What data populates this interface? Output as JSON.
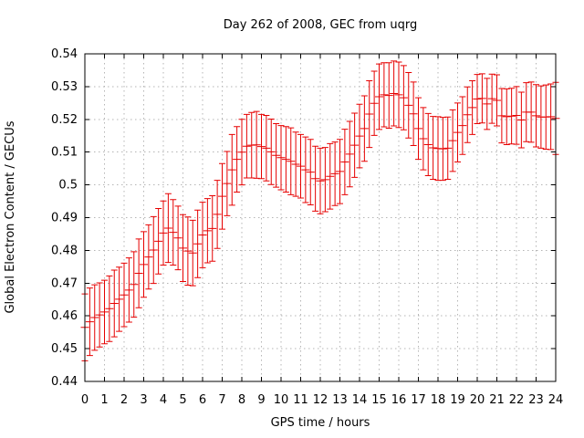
{
  "window": {
    "background": "#ffffff"
  },
  "chart_data": {
    "type": "scatter",
    "style": "points with symmetric y-errorbars (gnuplot style)",
    "title": "Day 262 of 2008, GEC from uqrg",
    "xlabel": "GPS time / hours",
    "ylabel": "Global Electron Content / GECUs",
    "xlim": [
      0,
      24
    ],
    "ylim": [
      0.44,
      0.54
    ],
    "grid": true,
    "legend": "none",
    "x_ticks": [
      "0",
      "1",
      "2",
      "3",
      "4",
      "5",
      "6",
      "7",
      "8",
      "9",
      "10",
      "11",
      "12",
      "13",
      "14",
      "15",
      "16",
      "17",
      "18",
      "19",
      "20",
      "21",
      "22",
      "23",
      "24"
    ],
    "y_ticks": [
      "0.44",
      "0.45",
      "0.46",
      "0.47",
      "0.48",
      "0.49",
      "0.5",
      "0.51",
      "0.52",
      "0.53",
      "0.54"
    ],
    "colors": {
      "series": "#e60000",
      "grid": "#b5b5b5",
      "axis": "#000000",
      "text": "#000000",
      "background": "#ffffff"
    },
    "points": {
      "t": [
        0,
        0.25,
        0.5,
        0.75,
        1,
        1.25,
        1.5,
        1.75,
        2,
        2.25,
        2.5,
        2.75,
        3,
        3.25,
        3.5,
        3.75,
        4,
        4.25,
        4.5,
        4.75,
        5,
        5.25,
        5.5,
        5.75,
        6,
        6.25,
        6.5,
        6.75,
        7,
        7.25,
        7.5,
        7.75,
        8,
        8.25,
        8.5,
        8.75,
        9,
        9.25,
        9.5,
        9.75,
        10,
        10.25,
        10.5,
        10.75,
        11,
        11.25,
        11.5,
        11.75,
        12,
        12.25,
        12.5,
        12.75,
        13,
        13.25,
        13.5,
        13.75,
        14,
        14.25,
        14.5,
        14.75,
        15,
        15.25,
        15.5,
        15.75,
        16,
        16.25,
        16.5,
        16.75,
        17,
        17.25,
        17.5,
        17.75,
        18,
        18.25,
        18.5,
        18.75,
        19,
        19.25,
        19.5,
        19.75,
        20,
        20.25,
        20.5,
        20.75,
        21,
        21.25,
        21.5,
        21.75,
        22,
        22.25,
        22.5,
        22.75,
        23,
        23.25,
        23.5,
        23.75,
        24
      ],
      "v": [
        0.4565,
        0.4582,
        0.4595,
        0.4603,
        0.4612,
        0.4622,
        0.4638,
        0.4651,
        0.4664,
        0.4679,
        0.4696,
        0.473,
        0.4757,
        0.478,
        0.4801,
        0.4828,
        0.4853,
        0.4868,
        0.4855,
        0.4838,
        0.4807,
        0.4798,
        0.4792,
        0.482,
        0.4847,
        0.486,
        0.4867,
        0.491,
        0.4965,
        0.5004,
        0.5046,
        0.5078,
        0.51,
        0.5118,
        0.5121,
        0.5122,
        0.5117,
        0.5112,
        0.5101,
        0.509,
        0.5083,
        0.5078,
        0.5072,
        0.5063,
        0.5057,
        0.5046,
        0.5039,
        0.5019,
        0.5012,
        0.5016,
        0.5026,
        0.5034,
        0.5041,
        0.507,
        0.5094,
        0.5121,
        0.5149,
        0.5172,
        0.5216,
        0.5249,
        0.5269,
        0.5275,
        0.5273,
        0.5279,
        0.5275,
        0.5266,
        0.5243,
        0.5217,
        0.5172,
        0.5141,
        0.5123,
        0.5113,
        0.5111,
        0.511,
        0.5112,
        0.5135,
        0.516,
        0.5181,
        0.5214,
        0.5236,
        0.5262,
        0.5264,
        0.5247,
        0.5263,
        0.5258,
        0.5211,
        0.5208,
        0.521,
        0.5212,
        0.5198,
        0.5222,
        0.5222,
        0.5211,
        0.5207,
        0.5207,
        0.5208,
        0.5203
      ],
      "err": [
        0.0102,
        0.0103,
        0.01,
        0.0098,
        0.0097,
        0.01,
        0.0102,
        0.0098,
        0.0097,
        0.0098,
        0.01,
        0.0105,
        0.01,
        0.0098,
        0.0102,
        0.01,
        0.0098,
        0.0105,
        0.01,
        0.0097,
        0.0102,
        0.0104,
        0.01,
        0.0103,
        0.01,
        0.0098,
        0.01,
        0.0104,
        0.01,
        0.0098,
        0.0108,
        0.01,
        0.01,
        0.0097,
        0.01,
        0.0102,
        0.0098,
        0.01,
        0.01,
        0.0097,
        0.0098,
        0.01,
        0.0102,
        0.0098,
        0.0097,
        0.01,
        0.01,
        0.0099,
        0.01,
        0.0098,
        0.01,
        0.0097,
        0.0098,
        0.01,
        0.01,
        0.0098,
        0.0097,
        0.01,
        0.0102,
        0.0098,
        0.01,
        0.0098,
        0.01,
        0.0099,
        0.01,
        0.0098,
        0.01,
        0.0097,
        0.0094,
        0.0095,
        0.0095,
        0.0096,
        0.0097,
        0.0096,
        0.0095,
        0.0094,
        0.009,
        0.0088,
        0.0085,
        0.0082,
        0.0075,
        0.0075,
        0.0078,
        0.0075,
        0.0078,
        0.0083,
        0.0085,
        0.0085,
        0.0088,
        0.0085,
        0.009,
        0.0092,
        0.0095,
        0.0095,
        0.0098,
        0.01,
        0.011
      ]
    }
  }
}
